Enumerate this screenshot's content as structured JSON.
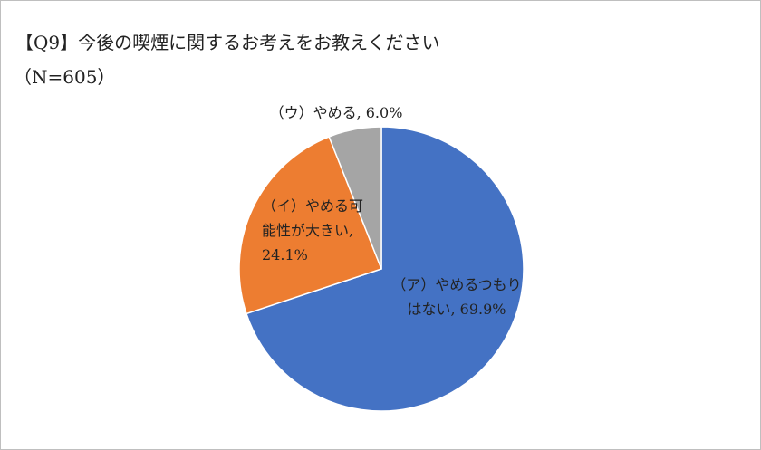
{
  "chart_data": {
    "type": "pie",
    "title": "【Q9】今後の喫煙に関するお考えをお教えください",
    "subtitle": "（N=605）",
    "values": [
      69.9,
      24.1,
      6.0
    ],
    "value_labels": [
      "（ア）やめるつもりはない, 69.9%",
      "（イ）やめる可能性が大きい, 24.1%",
      "（ウ）やめる, 6.0%"
    ],
    "colors": [
      "#4472c4",
      "#ed7d31",
      "#a5a5a5"
    ]
  }
}
